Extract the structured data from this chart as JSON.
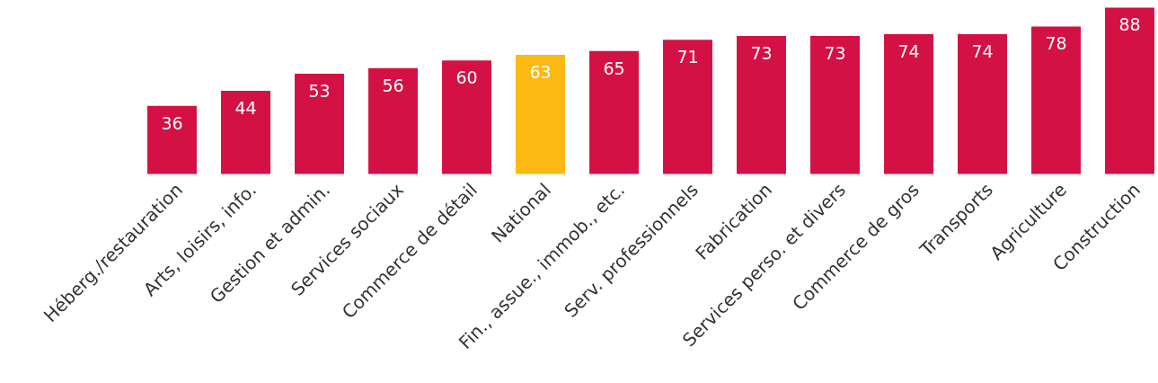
{
  "chart_data": {
    "type": "bar",
    "categories": [
      "Héberg./restauration",
      "Arts, loisirs, info.",
      "Gestion et admin.",
      "Services sociaux",
      "Commerce de détail",
      "National",
      "Fin., assue., immob., etc.",
      "Serv. professionnels",
      "Fabrication",
      "Services perso. et divers",
      "Commerce de gros",
      "Transports",
      "Agriculture",
      "Construction"
    ],
    "values": [
      36,
      44,
      53,
      56,
      60,
      63,
      65,
      71,
      73,
      73,
      74,
      74,
      78,
      88
    ],
    "colors": [
      "#d31145",
      "#d31145",
      "#d31145",
      "#d31145",
      "#d31145",
      "#fdb913",
      "#d31145",
      "#d31145",
      "#d31145",
      "#d31145",
      "#d31145",
      "#d31145",
      "#d31145",
      "#d31145"
    ],
    "data_labels": true
  }
}
